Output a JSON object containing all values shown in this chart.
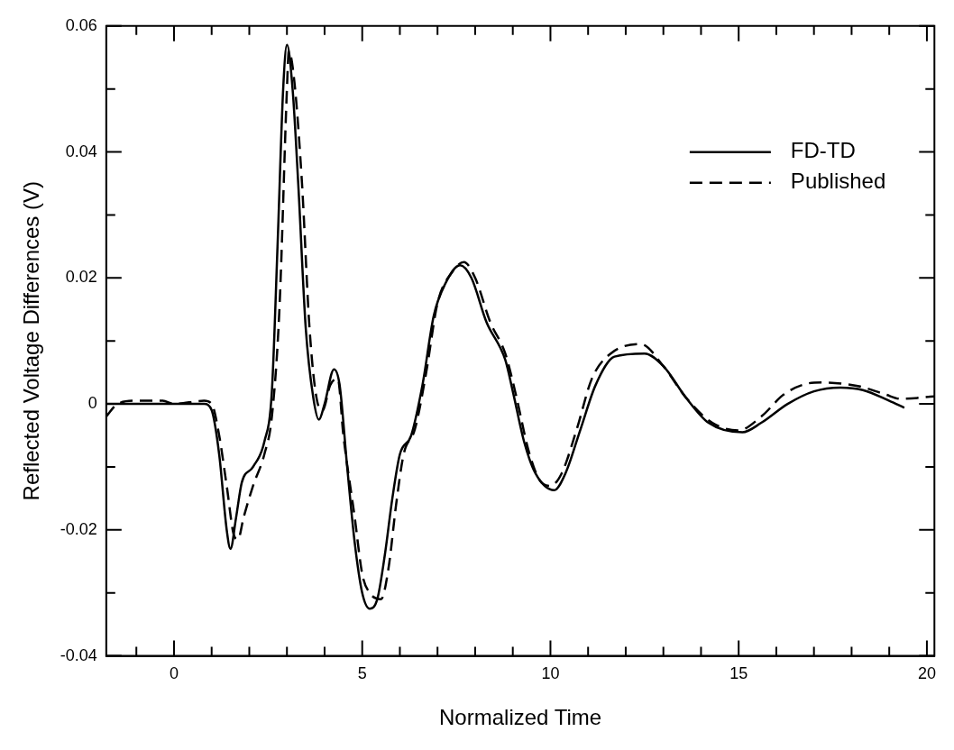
{
  "chart_data": {
    "type": "line",
    "xlabel": "Normalized Time",
    "ylabel": "Reflected Voltage Differences (V)",
    "xlim": [
      -1.8,
      20.2
    ],
    "ylim": [
      -0.04,
      0.06
    ],
    "xticks": [
      {
        "value": -1,
        "label": null
      },
      0,
      {
        "value": 1,
        "label": null
      },
      {
        "value": 2,
        "label": null
      },
      {
        "value": 3,
        "label": null
      },
      {
        "value": 4,
        "label": null
      },
      5,
      {
        "value": 6,
        "label": null
      },
      {
        "value": 7,
        "label": null
      },
      {
        "value": 8,
        "label": null
      },
      {
        "value": 9,
        "label": null
      },
      10,
      {
        "value": 11,
        "label": null
      },
      {
        "value": 12,
        "label": null
      },
      {
        "value": 13,
        "label": null
      },
      {
        "value": 14,
        "label": null
      },
      15,
      {
        "value": 16,
        "label": null
      },
      {
        "value": 17,
        "label": null
      },
      {
        "value": 18,
        "label": null
      },
      {
        "value": 19,
        "label": null
      },
      20
    ],
    "yticks": [
      -0.04,
      {
        "value": -0.03,
        "label": null
      },
      -0.02,
      {
        "value": -0.01,
        "label": null
      },
      0,
      {
        "value": 0.01,
        "label": null
      },
      0.02,
      {
        "value": 0.03,
        "label": null
      },
      0.04,
      {
        "value": 0.05,
        "label": null
      },
      0.06
    ],
    "grid": false,
    "legend": "top right",
    "marker": "none",
    "series": [
      {
        "name": "FD-TD",
        "color": "#000000",
        "line_style": "solid",
        "x": [
          -1.8,
          0.8,
          1.0,
          1.2,
          1.4,
          1.5,
          1.65,
          1.8,
          2.1,
          2.4,
          2.6,
          2.75,
          2.9,
          3.0,
          3.15,
          3.3,
          3.5,
          3.7,
          3.85,
          4.0,
          4.25,
          4.4,
          4.6,
          4.8,
          5.0,
          5.2,
          5.4,
          5.6,
          5.8,
          6.0,
          6.3,
          6.6,
          6.9,
          7.2,
          7.6,
          7.9,
          8.3,
          8.8,
          9.0,
          9.3,
          9.6,
          10.1,
          10.4,
          10.8,
          11.2,
          11.7,
          12.5,
          13.0,
          13.6,
          14.2,
          15.1,
          15.6,
          16.3,
          17.0,
          17.7,
          18.3,
          19.0,
          19.4
        ],
        "values": [
          0,
          0,
          -0.001,
          -0.008,
          -0.02,
          -0.023,
          -0.018,
          -0.0125,
          -0.01,
          -0.006,
          0.002,
          0.025,
          0.05,
          0.057,
          0.05,
          0.035,
          0.012,
          0.001,
          -0.0025,
          0,
          0.0055,
          0.003,
          -0.01,
          -0.022,
          -0.03,
          -0.0325,
          -0.031,
          -0.024,
          -0.015,
          -0.008,
          -0.005,
          0.003,
          0.014,
          0.019,
          0.022,
          0.02,
          0.013,
          0.007,
          0.002,
          -0.006,
          -0.011,
          -0.0137,
          -0.011,
          -0.004,
          0.003,
          0.0075,
          0.008,
          0.006,
          0.001,
          -0.003,
          -0.0045,
          -0.003,
          0,
          0.002,
          0.0026,
          0.0022,
          0.0005,
          -0.0006
        ]
      },
      {
        "name": "Published",
        "color": "#000000",
        "line_style": "dashed",
        "x": [
          -1.8,
          -1.5,
          -1.0,
          -0.3,
          0,
          0.8,
          1.0,
          1.2,
          1.4,
          1.6,
          1.7,
          1.85,
          2.1,
          2.4,
          2.6,
          2.8,
          3.0,
          3.05,
          3.2,
          3.4,
          3.6,
          3.8,
          3.95,
          4.15,
          4.35,
          4.5,
          4.8,
          5.0,
          5.2,
          5.5,
          5.7,
          5.9,
          6.1,
          6.4,
          6.7,
          7.0,
          7.4,
          7.7,
          8.0,
          8.4,
          8.8,
          9.1,
          9.4,
          9.7,
          10.0,
          10.3,
          10.7,
          11.1,
          11.6,
          12.4,
          13.0,
          13.6,
          14.3,
          15.0,
          15.6,
          16.2,
          16.8,
          17.2,
          18.2,
          18.9,
          19.3,
          20.2
        ],
        "values": [
          -0.002,
          0,
          0.0005,
          0.0005,
          0,
          0.0005,
          0,
          -0.005,
          -0.013,
          -0.021,
          -0.0215,
          -0.018,
          -0.013,
          -0.008,
          -0.002,
          0.015,
          0.05,
          0.056,
          0.051,
          0.035,
          0.012,
          0.0005,
          -0.001,
          0.003,
          0.004,
          -0.005,
          -0.018,
          -0.027,
          -0.03,
          -0.031,
          -0.026,
          -0.016,
          -0.008,
          -0.004,
          0.005,
          0.016,
          0.021,
          0.0225,
          0.02,
          0.013,
          0.008,
          0.001,
          -0.007,
          -0.012,
          -0.013,
          -0.011,
          -0.004,
          0.004,
          0.008,
          0.0095,
          0.006,
          0.001,
          -0.003,
          -0.0042,
          -0.002,
          0.0015,
          0.0032,
          0.0034,
          0.0028,
          0.0015,
          0.0008,
          0.0012
        ]
      }
    ]
  }
}
